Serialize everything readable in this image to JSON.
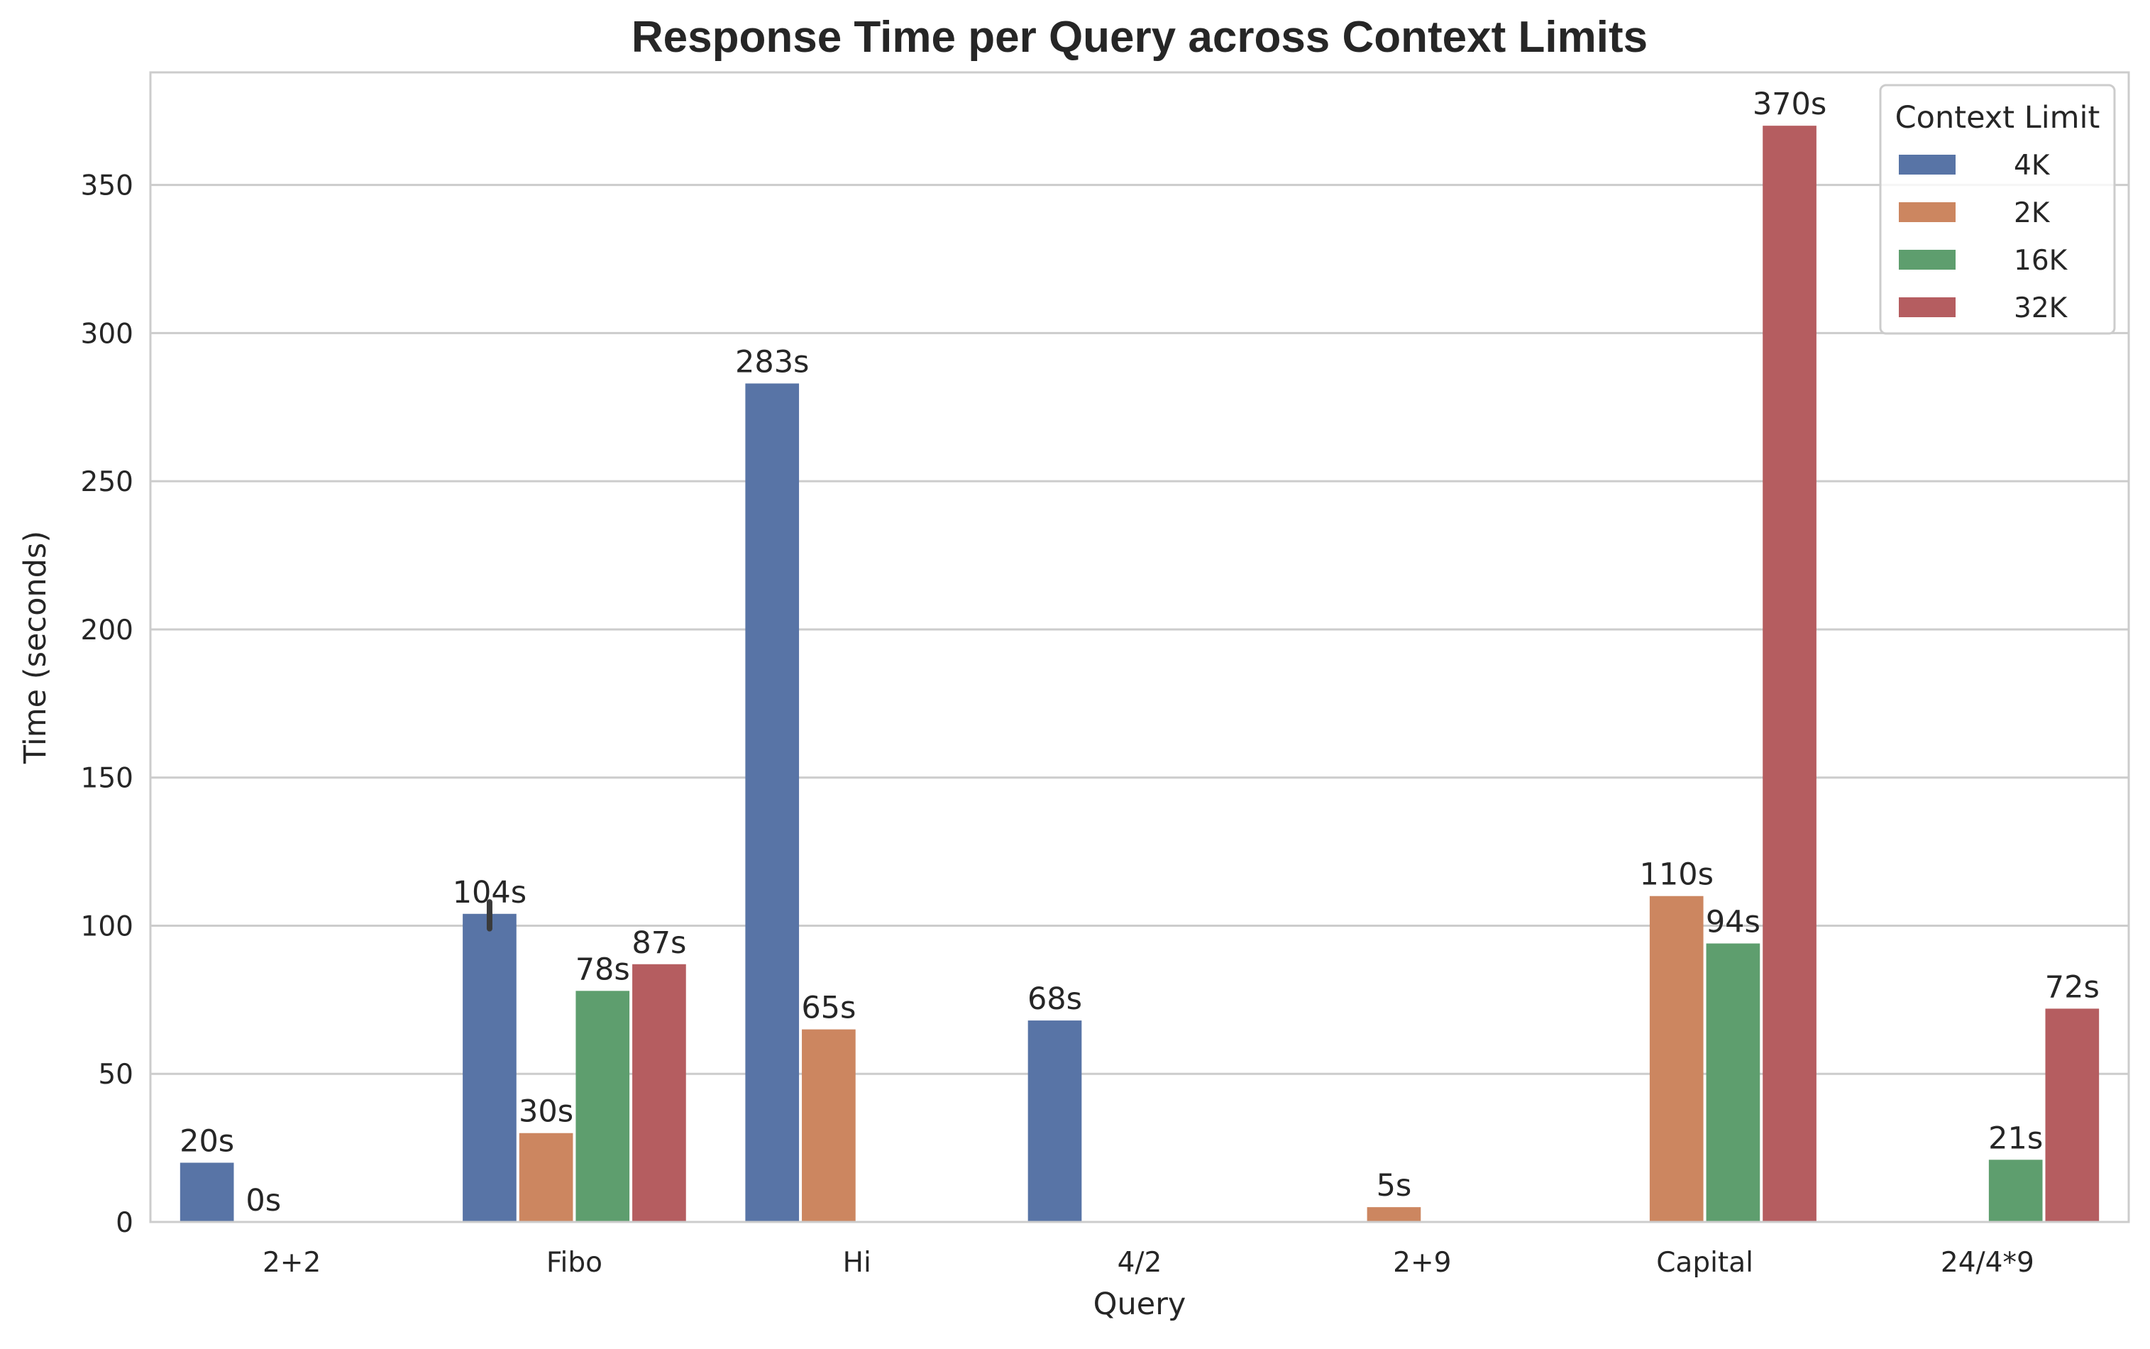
{
  "chart_data": {
    "type": "bar",
    "title": "Response Time per Query across Context Limits",
    "xlabel": "Query",
    "ylabel": "Time (seconds)",
    "categories": [
      "2+2",
      "Fibo",
      "Hi",
      "4/2",
      "2+9",
      "Capital",
      "24/4*9"
    ],
    "ylim": [
      0,
      388
    ],
    "yticks": [
      0,
      50,
      100,
      150,
      200,
      250,
      300,
      350
    ],
    "grid": "horizontal",
    "legend": {
      "title": "Context Limit",
      "placement": "top-right"
    },
    "series": [
      {
        "name": "4K",
        "color": "#5874a6",
        "values": [
          20,
          104,
          283,
          68,
          null,
          null,
          null
        ],
        "labels": [
          "20s",
          "104s",
          "283s",
          "68s",
          null,
          null,
          null
        ],
        "error": [
          null,
          [
            99,
            108
          ],
          null,
          null,
          null,
          null,
          null
        ]
      },
      {
        "name": "2K",
        "color": "#cc8660",
        "values": [
          0,
          30,
          65,
          null,
          5,
          110,
          null
        ],
        "labels": [
          "0s",
          "30s",
          "65s",
          null,
          "5s",
          "110s",
          null
        ],
        "error": [
          null,
          null,
          null,
          null,
          null,
          null,
          null
        ]
      },
      {
        "name": "16K",
        "color": "#5e9e6e",
        "values": [
          null,
          78,
          null,
          null,
          null,
          94,
          21
        ],
        "labels": [
          null,
          "78s",
          null,
          null,
          null,
          "94s",
          "21s"
        ],
        "error": [
          null,
          null,
          null,
          null,
          null,
          null,
          null
        ]
      },
      {
        "name": "32K",
        "color": "#b55d60",
        "values": [
          null,
          87,
          null,
          null,
          null,
          370,
          72
        ],
        "labels": [
          null,
          "87s",
          null,
          null,
          null,
          "370s",
          "72s"
        ],
        "error": [
          null,
          null,
          null,
          null,
          null,
          null,
          null
        ]
      }
    ]
  }
}
